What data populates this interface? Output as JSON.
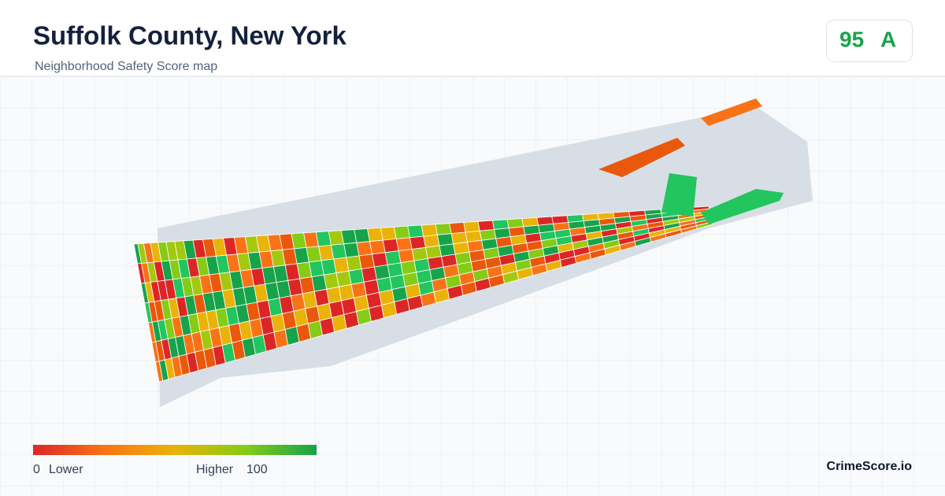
{
  "header": {
    "title": "Suffolk County, New York",
    "subtitle": "Neighborhood Safety Score map"
  },
  "score": {
    "value": 95,
    "grade": "A"
  },
  "legend": {
    "min": 0,
    "min_label": "Lower",
    "max": 100,
    "max_label": "Higher"
  },
  "brand": "CrimeScore.io"
}
